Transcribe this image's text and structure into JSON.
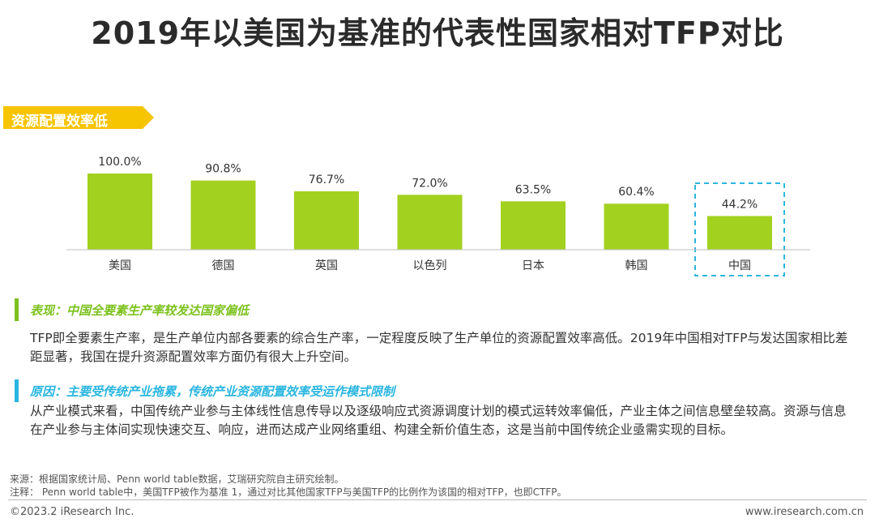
{
  "title": "2019年以美国为基准的代表性国家相对TFP对比",
  "tag": "资源配置效率低",
  "colors": {
    "bar": "#a3d11f",
    "highlight_box": "#29b6e0",
    "tag": "#f7c400",
    "green_heading": "#7dc21f",
    "blue_heading": "#29b6e0"
  },
  "chart_data": {
    "type": "bar",
    "categories": [
      "美国",
      "德国",
      "英国",
      "以色列",
      "日本",
      "韩国",
      "中国"
    ],
    "values": [
      100.0,
      90.8,
      76.7,
      72.0,
      63.5,
      60.4,
      44.2
    ],
    "value_labels": [
      "100.0%",
      "90.8%",
      "76.7%",
      "72.0%",
      "63.5%",
      "60.4%",
      "44.2%"
    ],
    "unit": "%",
    "highlighted_category": "中国",
    "ylim": [
      0,
      100
    ],
    "grid": false,
    "title": "",
    "xlabel": "",
    "ylabel": ""
  },
  "section1": {
    "heading": "表现：中国全要素生产率较发达国家偏低",
    "body": "TFP即全要素生产率，是生产单位内部各要素的综合生产率，一定程度反映了生产单位的资源配置效率高低。2019年中国相对TFP与发达国家相比差距显著，我国在提升资源配置效率方面仍有很大上升空间。"
  },
  "section2": {
    "heading": "原因：主要受传统产业拖累，传统产业资源配置效率受运作模式限制",
    "body": "从产业模式来看，中国传统产业参与主体线性信息传导以及逐级响应式资源调度计划的模式运转效率偏低，产业主体之间信息壁垒较高。资源与信息在产业参与主体间实现快速交互、响应，进而达成产业网络重组、构建全新价值生态，这是当前中国传统企业亟需实现的目标。"
  },
  "source": "来源：根据国家统计局、Penn world table数据，艾瑞研究院自主研究绘制。",
  "note": "注释：  Penn world table中，美国TFP被作为基准 1，通过对比其他国家TFP与美国TFP的比例作为该国的相对TFP，也即CTFP。",
  "copyright": "©2023.2 iResearch Inc.",
  "website": "www.iresearch.com.cn"
}
